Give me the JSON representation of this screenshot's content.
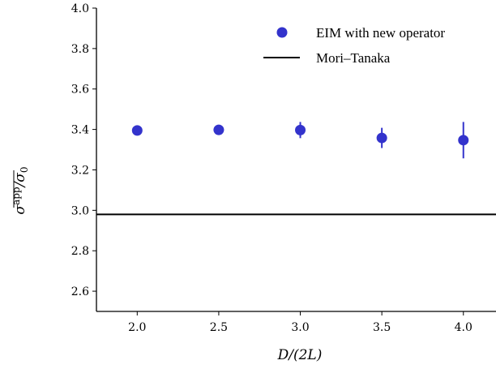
{
  "chart_data": {
    "type": "scatter",
    "xlabel": "D/(2L)",
    "ylabel": "σapp/σ0",
    "xlim": [
      1.75,
      4.2
    ],
    "ylim": [
      2.5,
      4.0
    ],
    "x_ticks": [
      "2.0",
      "2.5",
      "3.0",
      "3.5",
      "4.0"
    ],
    "y_ticks": [
      "2.6",
      "2.8",
      "3.0",
      "3.2",
      "3.4",
      "3.6",
      "3.8",
      "4.0"
    ],
    "series": [
      {
        "name": "EIM with new operator",
        "color": "#3333cc",
        "marker": "circle",
        "x": [
          2.0,
          2.5,
          3.0,
          3.5,
          4.0
        ],
        "y": [
          3.395,
          3.398,
          3.397,
          3.358,
          3.347
        ],
        "yerr": [
          0.008,
          0.008,
          0.04,
          0.05,
          0.09
        ]
      }
    ],
    "reference_lines": [
      {
        "name": "Mori–Tanaka",
        "y": 2.98,
        "color": "#000000"
      }
    ],
    "legend": {
      "placement": "top-right"
    },
    "grid": false
  }
}
